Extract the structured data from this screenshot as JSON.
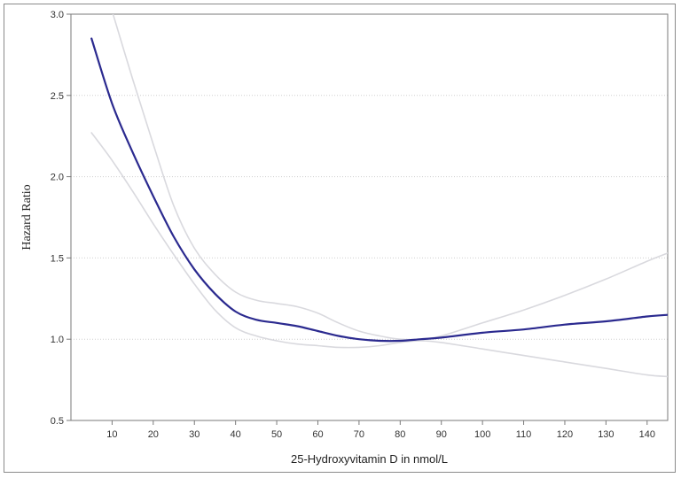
{
  "chart_data": {
    "type": "line",
    "title": "",
    "xlabel": "25-Hydroxyvitamin D in nmol/L",
    "ylabel": "Hazard Ratio",
    "xlim": [
      0,
      145
    ],
    "ylim": [
      0.5,
      3.0
    ],
    "x_ticks": [
      10,
      20,
      30,
      40,
      50,
      60,
      70,
      80,
      90,
      100,
      110,
      120,
      130,
      140
    ],
    "y_ticks": [
      0.5,
      1.0,
      1.5,
      2.0,
      2.5,
      3.0
    ],
    "y_tick_labels": [
      "0.5",
      "1.0",
      "1.5",
      "2.0",
      "2.5",
      "3.0"
    ],
    "grid": "horizontal",
    "legend": "none",
    "series": [
      {
        "role": "estimate",
        "color": "#2b2a8f",
        "x": [
          5,
          10,
          15,
          20,
          25,
          30,
          35,
          40,
          45,
          50,
          55,
          60,
          65,
          70,
          75,
          80,
          85,
          90,
          100,
          110,
          120,
          130,
          140,
          145
        ],
        "y": [
          2.85,
          2.45,
          2.15,
          1.88,
          1.63,
          1.43,
          1.28,
          1.17,
          1.12,
          1.1,
          1.08,
          1.05,
          1.02,
          1.0,
          0.99,
          0.99,
          1.0,
          1.01,
          1.04,
          1.06,
          1.09,
          1.11,
          1.14,
          1.15
        ]
      },
      {
        "role": "upper-ci",
        "color": "#d9d9de",
        "x": [
          10,
          15,
          20,
          25,
          30,
          35,
          40,
          45,
          50,
          55,
          60,
          65,
          70,
          75,
          80,
          85,
          90,
          100,
          110,
          120,
          130,
          140,
          145
        ],
        "y": [
          3.02,
          2.6,
          2.2,
          1.82,
          1.56,
          1.4,
          1.29,
          1.24,
          1.22,
          1.2,
          1.16,
          1.1,
          1.05,
          1.02,
          1.0,
          1.0,
          1.02,
          1.1,
          1.18,
          1.27,
          1.37,
          1.48,
          1.53
        ]
      },
      {
        "role": "lower-ci",
        "color": "#d9d9de",
        "x": [
          5,
          10,
          15,
          20,
          25,
          30,
          35,
          40,
          45,
          50,
          55,
          60,
          65,
          70,
          75,
          80,
          85,
          90,
          100,
          110,
          120,
          130,
          140,
          145
        ],
        "y": [
          2.27,
          2.1,
          1.91,
          1.71,
          1.52,
          1.34,
          1.18,
          1.07,
          1.02,
          0.99,
          0.97,
          0.96,
          0.95,
          0.95,
          0.96,
          0.98,
          0.99,
          0.98,
          0.94,
          0.9,
          0.86,
          0.82,
          0.78,
          0.77
        ]
      }
    ]
  }
}
